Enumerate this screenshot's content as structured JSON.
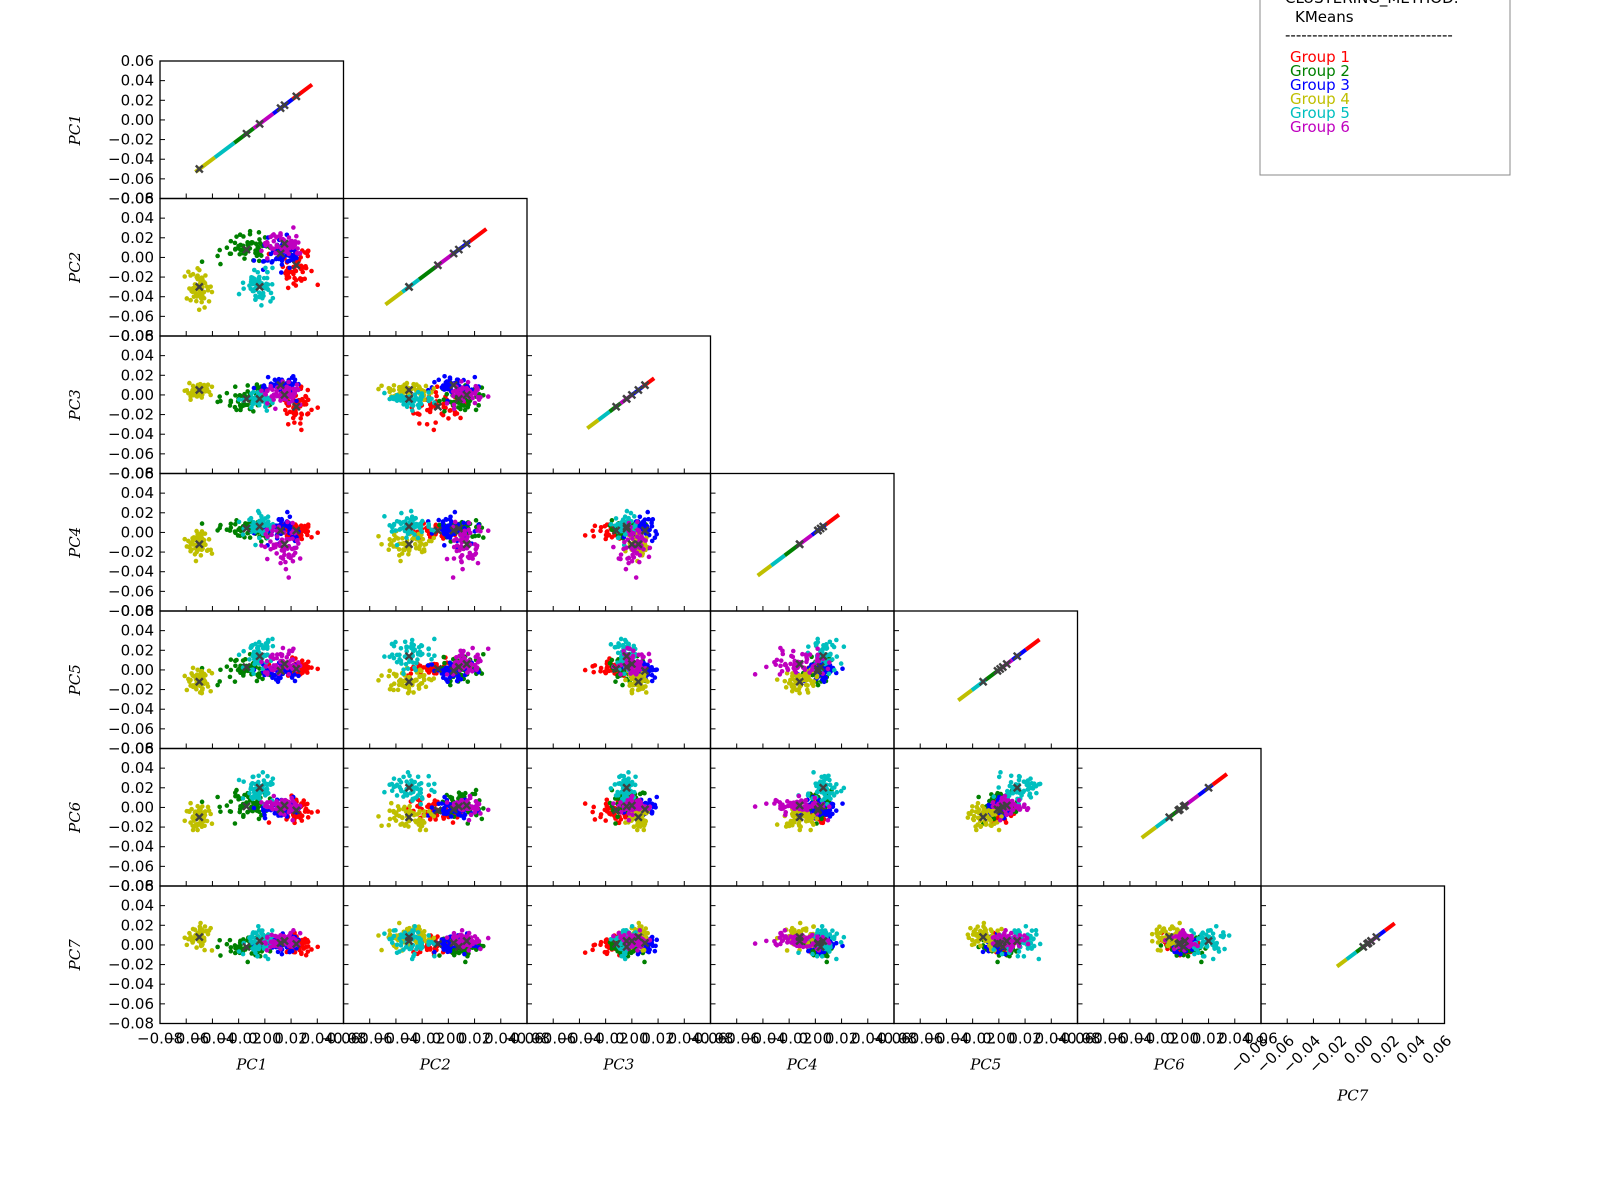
{
  "legend": {
    "header": "CLUSTERING_METHOD:",
    "method": "KMeans",
    "separator": "-------------------------------",
    "groups": [
      {
        "label": "Group 1",
        "color": "#ff0000"
      },
      {
        "label": "Group 2",
        "color": "#008000"
      },
      {
        "label": "Group 3",
        "color": "#0000ff"
      },
      {
        "label": "Group 4",
        "color": "#bfbf00"
      },
      {
        "label": "Group 5",
        "color": "#00bfbf"
      },
      {
        "label": "Group 6",
        "color": "#bf00bf"
      }
    ]
  },
  "centroid_marker_color": "#404040",
  "chart_data": {
    "type": "scatter",
    "layout": "lower-triangular pair plot",
    "variables": [
      "PC_1",
      "PC_2",
      "PC_3",
      "PC_4",
      "PC_5",
      "PC_6",
      "PC_7"
    ],
    "axis_labels": [
      "PC1",
      "PC2",
      "PC3",
      "PC4",
      "PC5",
      "PC6",
      "PC7"
    ],
    "xlim": [
      -0.08,
      0.06
    ],
    "ylim": [
      -0.08,
      0.06
    ],
    "yticks": [
      "0.06",
      "0.04",
      "0.02",
      "0.00",
      "−0.02",
      "−0.04",
      "−0.06",
      "−0.08"
    ],
    "xticks": [
      "−0.08",
      "−0.06",
      "−0.04",
      "−0.02",
      "0.00",
      "0.02",
      "0.04",
      "0.06"
    ],
    "grid": false,
    "legend_position": "top-right",
    "series": [
      {
        "name": "Group 1",
        "color": "#ff0000",
        "centroid": [
          0.024,
          -0.008,
          -0.012,
          0.002,
          0.001,
          -0.003,
          0.001
        ],
        "spread": [
          0.006,
          0.01,
          0.009,
          0.004,
          0.005,
          0.006,
          0.005
        ]
      },
      {
        "name": "Group 2",
        "color": "#008000",
        "centroid": [
          -0.014,
          0.008,
          -0.004,
          0.004,
          0.003,
          0.001,
          -0.002
        ],
        "spread": [
          0.01,
          0.008,
          0.007,
          0.005,
          0.007,
          0.006,
          0.006
        ]
      },
      {
        "name": "Group 3",
        "color": "#0000ff",
        "centroid": [
          0.012,
          0.004,
          0.01,
          0.002,
          -0.001,
          -0.002,
          0.002
        ],
        "spread": [
          0.008,
          0.008,
          0.004,
          0.008,
          0.005,
          0.004,
          0.004
        ]
      },
      {
        "name": "Group 4",
        "color": "#bfbf00",
        "centroid": [
          -0.05,
          -0.03,
          0.005,
          -0.012,
          -0.012,
          -0.01,
          0.008
        ],
        "spread": [
          0.005,
          0.008,
          0.004,
          0.006,
          0.006,
          0.006,
          0.007
        ]
      },
      {
        "name": "Group 5",
        "color": "#00bfbf",
        "centroid": [
          -0.004,
          -0.03,
          -0.004,
          0.006,
          0.014,
          0.02,
          0.004
        ],
        "spread": [
          0.006,
          0.009,
          0.004,
          0.006,
          0.008,
          0.007,
          0.007
        ]
      },
      {
        "name": "Group 6",
        "color": "#bf00bf",
        "centroid": [
          0.015,
          0.014,
          0.0,
          -0.012,
          0.006,
          0.002,
          0.004
        ],
        "spread": [
          0.006,
          0.007,
          0.005,
          0.012,
          0.006,
          0.004,
          0.004
        ]
      }
    ],
    "centroids_marker": "x",
    "diagonal_ranges": [
      {
        "var": "PC_1",
        "from": -0.053,
        "to": 0.036
      },
      {
        "var": "PC_2",
        "from": -0.048,
        "to": 0.029
      },
      {
        "var": "PC_3",
        "from": -0.034,
        "to": 0.017
      },
      {
        "var": "PC_4",
        "from": -0.044,
        "to": 0.018
      },
      {
        "var": "PC_5",
        "from": -0.031,
        "to": 0.031
      },
      {
        "var": "PC_6",
        "from": -0.031,
        "to": 0.034
      },
      {
        "var": "PC_7",
        "from": -0.022,
        "to": 0.022
      }
    ]
  }
}
